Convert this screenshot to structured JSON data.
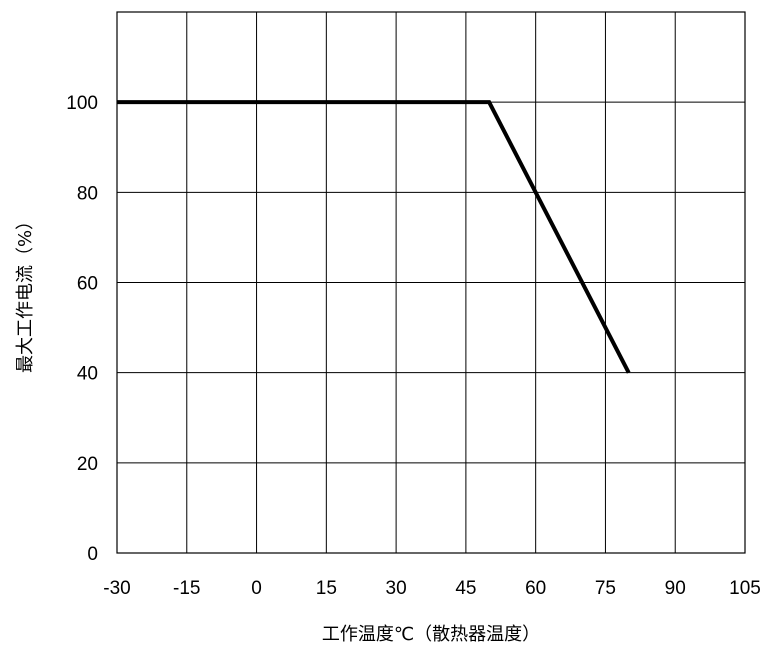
{
  "chart_data": {
    "type": "line",
    "title": "",
    "xlabel": "工作温度℃（散热器温度）",
    "ylabel": "最大工作电流（%）",
    "xlim": [
      -30,
      105
    ],
    "ylim": [
      0,
      120
    ],
    "x_ticks": [
      -30,
      -15,
      0,
      15,
      30,
      45,
      60,
      75,
      90,
      105
    ],
    "y_ticks": [
      0,
      20,
      40,
      60,
      80,
      100
    ],
    "grid": true,
    "legend": "none",
    "series": [
      {
        "x": [
          -30,
          50,
          80
        ],
        "y": [
          100,
          100,
          40
        ],
        "color": "#000000"
      }
    ]
  }
}
